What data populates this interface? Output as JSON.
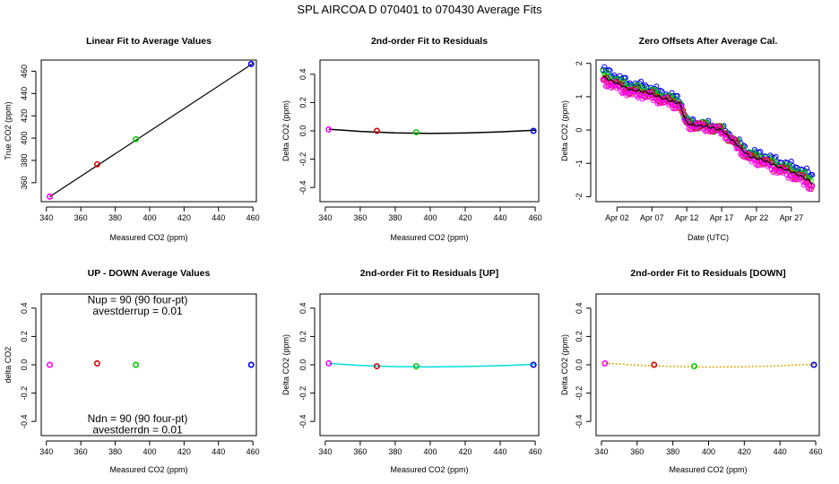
{
  "figure": {
    "title": "SPL    AIRCOA D    070401 to 070430    Average Fits"
  },
  "colors": {
    "tank1": "#ff00ff",
    "tank2": "#dd0000",
    "tank3": "#00cc00",
    "tank4": "#0000ee",
    "fit_main": "#000000",
    "fit_up": "#00dddd",
    "fit_down": "#ddaa00",
    "offset_series": [
      "#0000ee",
      "#00cc00",
      "#dd0000",
      "#ff00ff"
    ],
    "offset_mean": "#000000"
  },
  "chart_data": [
    {
      "id": "linear",
      "type": "scatter",
      "title": "Linear Fit to Average Values",
      "xlabel": "Measured CO2 (ppm)",
      "ylabel": "True CO2 (ppm)",
      "xlim": [
        337,
        462
      ],
      "ylim": [
        343,
        470
      ],
      "xticks": [
        340,
        360,
        380,
        400,
        420,
        440,
        460
      ],
      "xtick_labels": [
        "340",
        "360",
        "380",
        "400",
        "420",
        "440",
        "460"
      ],
      "yticks": [
        360,
        380,
        400,
        420,
        440,
        460
      ],
      "ytick_labels": [
        "360",
        "380",
        "400",
        "420",
        "440",
        "460"
      ],
      "points": [
        {
          "x": 342.0,
          "y": 347.5,
          "color": "#ff00ff"
        },
        {
          "x": 369.5,
          "y": 376.5,
          "color": "#dd0000"
        },
        {
          "x": 392.0,
          "y": 399.0,
          "color": "#00cc00"
        },
        {
          "x": 459.0,
          "y": 466.5,
          "color": "#0000ee"
        }
      ],
      "fit": {
        "kind": "line",
        "x": [
          342,
          460
        ],
        "y": [
          347.5,
          467.0
        ],
        "color": "#000000"
      }
    },
    {
      "id": "resid",
      "type": "scatter",
      "title": "2nd-order Fit to Residuals",
      "xlabel": "Measured CO2 (ppm)",
      "ylabel": "Delta CO2 (ppm)",
      "xlim": [
        337,
        462
      ],
      "ylim": [
        -0.5,
        0.5
      ],
      "xticks": [
        340,
        360,
        380,
        400,
        420,
        440,
        460
      ],
      "xtick_labels": [
        "340",
        "360",
        "380",
        "400",
        "420",
        "440",
        "460"
      ],
      "yticks": [
        -0.4,
        -0.2,
        0.0,
        0.2,
        0.4
      ],
      "ytick_labels": [
        "-0.4",
        "-0.2",
        "0.0",
        "0.2",
        "0.4"
      ],
      "points": [
        {
          "x": 342.0,
          "y": 0.01,
          "color": "#ff00ff"
        },
        {
          "x": 369.5,
          "y": 0.0,
          "color": "#dd0000"
        },
        {
          "x": 392.0,
          "y": -0.01,
          "color": "#00cc00"
        },
        {
          "x": 459.0,
          "y": 0.0,
          "color": "#0000ee"
        }
      ],
      "fit": {
        "kind": "curve",
        "x": [
          342,
          360,
          380,
          400,
          420,
          440,
          460
        ],
        "y": [
          0.012,
          -0.004,
          -0.014,
          -0.018,
          -0.015,
          -0.007,
          0.005
        ],
        "color": "#000000"
      }
    },
    {
      "id": "offsets",
      "type": "line",
      "title": "Zero Offsets After Average Cal.",
      "xlabel": "Date (UTC)",
      "ylabel": "Delta CO2 (ppm)",
      "xlim": [
        "2007-03-30",
        "2007-05-01"
      ],
      "ylim": [
        -2.15,
        2.1
      ],
      "xticks": [
        "2007-04-02",
        "2007-04-07",
        "2007-04-12",
        "2007-04-17",
        "2007-04-22",
        "2007-04-27"
      ],
      "xtick_labels": [
        "Apr 02",
        "Apr 07",
        "Apr 12",
        "Apr 17",
        "Apr 22",
        "Apr 27"
      ],
      "yticks": [
        -2,
        -1,
        0,
        1,
        2
      ],
      "ytick_labels": [
        "-2",
        "-1",
        "0",
        "1",
        "2"
      ],
      "mean_trend": {
        "x": [
          "2007-03-31",
          "2007-04-02",
          "2007-04-04",
          "2007-04-06",
          "2007-04-08",
          "2007-04-10",
          "2007-04-11",
          "2007-04-12",
          "2007-04-13",
          "2007-04-15",
          "2007-04-17",
          "2007-04-19",
          "2007-04-20",
          "2007-04-21",
          "2007-04-23",
          "2007-04-25",
          "2007-04-27",
          "2007-04-29",
          "2007-04-30"
        ],
        "y": [
          1.6,
          1.4,
          1.2,
          1.15,
          1.0,
          0.85,
          0.8,
          0.2,
          0.15,
          0.1,
          0.0,
          -0.4,
          -0.6,
          -0.8,
          -0.9,
          -1.1,
          -1.25,
          -1.45,
          -1.6
        ]
      },
      "series": [
        {
          "color": "#0000ee",
          "offset": 0.15
        },
        {
          "color": "#00cc00",
          "offset": 0.05
        },
        {
          "color": "#dd0000",
          "offset": -0.05
        },
        {
          "color": "#ff00ff",
          "offset": -0.1
        }
      ]
    },
    {
      "id": "updown",
      "type": "scatter",
      "title": "UP - DOWN Average Values",
      "xlabel": "Measured CO2 (ppm)",
      "ylabel": "delta CO2",
      "xlim": [
        337,
        462
      ],
      "ylim": [
        -0.5,
        0.5
      ],
      "xticks": [
        340,
        360,
        380,
        400,
        420,
        440,
        460
      ],
      "xtick_labels": [
        "340",
        "360",
        "380",
        "400",
        "420",
        "440",
        "460"
      ],
      "yticks": [
        -0.4,
        -0.2,
        0.0,
        0.2,
        0.4
      ],
      "ytick_labels": [
        "-0.4",
        "-0.2",
        "0.0",
        "0.2",
        "0.4"
      ],
      "points": [
        {
          "x": 342.0,
          "y": 0.0,
          "color": "#ff00ff"
        },
        {
          "x": 369.5,
          "y": 0.01,
          "color": "#dd0000"
        },
        {
          "x": 392.0,
          "y": 0.0,
          "color": "#00cc00"
        },
        {
          "x": 459.0,
          "y": 0.0,
          "color": "#0000ee"
        }
      ],
      "annotations": [
        {
          "text": "Nup = 90 (90 four-pt)",
          "x": 393,
          "y": 0.46
        },
        {
          "text": "avestderrup =  0.01",
          "x": 393,
          "y": 0.38
        },
        {
          "text": "Ndn = 90 (90 four-pt)",
          "x": 393,
          "y": -0.38
        },
        {
          "text": "avestderrdn =  0.01",
          "x": 393,
          "y": -0.46
        }
      ]
    },
    {
      "id": "resid_up",
      "type": "scatter",
      "title": "2nd-order Fit to Residuals [UP]",
      "xlabel": "Measured CO2 (ppm)",
      "ylabel": "Delta CO2 (ppm)",
      "xlim": [
        337,
        462
      ],
      "ylim": [
        -0.5,
        0.5
      ],
      "xticks": [
        340,
        360,
        380,
        400,
        420,
        440,
        460
      ],
      "xtick_labels": [
        "340",
        "360",
        "380",
        "400",
        "420",
        "440",
        "460"
      ],
      "yticks": [
        -0.4,
        -0.2,
        0.0,
        0.2,
        0.4
      ],
      "ytick_labels": [
        "-0.4",
        "-0.2",
        "0.0",
        "0.2",
        "0.4"
      ],
      "points": [
        {
          "x": 342.0,
          "y": 0.01,
          "color": "#ff00ff"
        },
        {
          "x": 369.5,
          "y": -0.01,
          "color": "#dd0000"
        },
        {
          "x": 392.0,
          "y": -0.01,
          "color": "#00cc00"
        },
        {
          "x": 459.0,
          "y": 0.0,
          "color": "#0000ee"
        }
      ],
      "fit": {
        "kind": "curve",
        "x": [
          342,
          360,
          380,
          400,
          420,
          440,
          460
        ],
        "y": [
          0.01,
          -0.005,
          -0.013,
          -0.015,
          -0.012,
          -0.006,
          0.003
        ],
        "color": "#00dddd"
      }
    },
    {
      "id": "resid_down",
      "type": "scatter",
      "title": "2nd-order Fit to Residuals [DOWN]",
      "xlabel": "Measured CO2 (ppm)",
      "ylabel": "Delta CO2 (ppm)",
      "xlim": [
        337,
        462
      ],
      "ylim": [
        -0.5,
        0.5
      ],
      "xticks": [
        340,
        360,
        380,
        400,
        420,
        440,
        460
      ],
      "xtick_labels": [
        "340",
        "360",
        "380",
        "400",
        "420",
        "440",
        "460"
      ],
      "yticks": [
        -0.4,
        -0.2,
        0.0,
        0.2,
        0.4
      ],
      "ytick_labels": [
        "-0.4",
        "-0.2",
        "0.0",
        "0.2",
        "0.4"
      ],
      "points": [
        {
          "x": 342.0,
          "y": 0.01,
          "color": "#ff00ff"
        },
        {
          "x": 369.5,
          "y": 0.0,
          "color": "#dd0000"
        },
        {
          "x": 392.0,
          "y": -0.01,
          "color": "#00cc00"
        },
        {
          "x": 459.0,
          "y": 0.0,
          "color": "#0000ee"
        }
      ],
      "fit": {
        "kind": "curve",
        "x": [
          342,
          360,
          380,
          400,
          420,
          440,
          460
        ],
        "y": [
          0.012,
          -0.003,
          -0.012,
          -0.016,
          -0.014,
          -0.007,
          0.004
        ],
        "color": "#ddaa00",
        "dashed": true
      }
    }
  ]
}
